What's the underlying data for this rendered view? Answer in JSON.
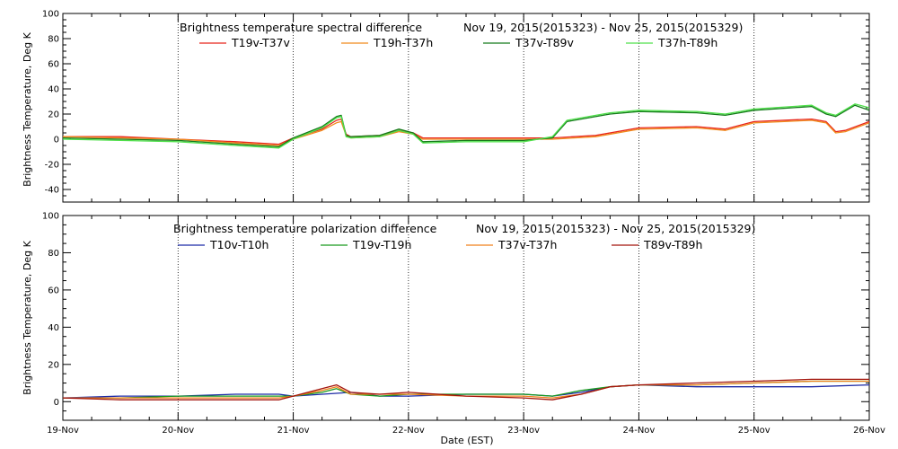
{
  "chart_data": [
    {
      "type": "line",
      "title": "Brightness temperature spectral difference",
      "date_range": "Nov 19, 2015(2015323) - Nov 25, 2015(2015329)",
      "ylabel": "Brightness Temperature, Deg K",
      "xlabel": "",
      "ylim": [
        -50,
        100
      ],
      "yticks": [
        -40,
        -20,
        0,
        20,
        40,
        60,
        80,
        100
      ],
      "xlim": [
        "2015-11-19",
        "2015-11-26"
      ],
      "grid": "vertical dotted at day boundaries",
      "legend_placement": "top",
      "series": [
        {
          "name": "T19v-T37v",
          "color": "#e8251b",
          "points": [
            [
              "2015-11-19",
              2
            ],
            [
              "2015-11-19T12:00",
              2
            ],
            [
              "2015-11-20",
              0
            ],
            [
              "2015-11-20T12:00",
              -2
            ],
            [
              "2015-11-20T21:00",
              -4
            ],
            [
              "2015-11-21",
              1
            ],
            [
              "2015-11-21T06:00",
              8
            ],
            [
              "2015-11-21T09:00",
              15
            ],
            [
              "2015-11-21T10:00",
              16
            ],
            [
              "2015-11-21T11:00",
              4
            ],
            [
              "2015-11-21T12:00",
              2
            ],
            [
              "2015-11-21T18:00",
              3
            ],
            [
              "2015-11-21T22:00",
              7
            ],
            [
              "2015-11-22T01:00",
              5
            ],
            [
              "2015-11-22T03:00",
              1
            ],
            [
              "2015-11-22T12:00",
              1
            ],
            [
              "2015-11-23",
              1
            ],
            [
              "2015-11-23T06:00",
              1
            ],
            [
              "2015-11-23T15:00",
              3
            ],
            [
              "2015-11-24",
              9
            ],
            [
              "2015-11-24T12:00",
              10
            ],
            [
              "2015-11-24T18:00",
              8
            ],
            [
              "2015-11-25",
              14
            ],
            [
              "2015-11-25T12:00",
              16
            ],
            [
              "2015-11-25T15:00",
              14
            ],
            [
              "2015-11-25T17:00",
              6
            ],
            [
              "2015-11-25T19:00",
              7
            ],
            [
              "2015-11-26",
              14
            ]
          ]
        },
        {
          "name": "T19h-T37h",
          "color": "#f08a1c",
          "points": [
            [
              "2015-11-19",
              2
            ],
            [
              "2015-11-19T12:00",
              1
            ],
            [
              "2015-11-20",
              0
            ],
            [
              "2015-11-20T12:00",
              -3
            ],
            [
              "2015-11-20T21:00",
              -5
            ],
            [
              "2015-11-21",
              0
            ],
            [
              "2015-11-21T06:00",
              7
            ],
            [
              "2015-11-21T09:00",
              13
            ],
            [
              "2015-11-21T10:00",
              14
            ],
            [
              "2015-11-21T11:00",
              3
            ],
            [
              "2015-11-21T12:00",
              1
            ],
            [
              "2015-11-21T18:00",
              2
            ],
            [
              "2015-11-21T22:00",
              6
            ],
            [
              "2015-11-22T01:00",
              4
            ],
            [
              "2015-11-22T03:00",
              0
            ],
            [
              "2015-11-22T12:00",
              0
            ],
            [
              "2015-11-23",
              0
            ],
            [
              "2015-11-23T06:00",
              0
            ],
            [
              "2015-11-23T15:00",
              2
            ],
            [
              "2015-11-24",
              8
            ],
            [
              "2015-11-24T12:00",
              9
            ],
            [
              "2015-11-24T18:00",
              7
            ],
            [
              "2015-11-25",
              13
            ],
            [
              "2015-11-25T12:00",
              15
            ],
            [
              "2015-11-25T15:00",
              13
            ],
            [
              "2015-11-25T17:00",
              5
            ],
            [
              "2015-11-25T19:00",
              6
            ],
            [
              "2015-11-26",
              13
            ]
          ]
        },
        {
          "name": "T37v-T89v",
          "color": "#147a1a",
          "points": [
            [
              "2015-11-19",
              1
            ],
            [
              "2015-11-19T12:00",
              0
            ],
            [
              "2015-11-20",
              -1
            ],
            [
              "2015-11-20T12:00",
              -4
            ],
            [
              "2015-11-20T21:00",
              -6
            ],
            [
              "2015-11-21",
              1
            ],
            [
              "2015-11-21T06:00",
              10
            ],
            [
              "2015-11-21T09:00",
              18
            ],
            [
              "2015-11-21T10:00",
              19
            ],
            [
              "2015-11-21T11:00",
              3
            ],
            [
              "2015-11-21T12:00",
              2
            ],
            [
              "2015-11-21T18:00",
              3
            ],
            [
              "2015-11-21T22:00",
              8
            ],
            [
              "2015-11-22T01:00",
              5
            ],
            [
              "2015-11-22T03:00",
              -2
            ],
            [
              "2015-11-22T12:00",
              -1
            ],
            [
              "2015-11-23",
              -1
            ],
            [
              "2015-11-23T06:00",
              1
            ],
            [
              "2015-11-23T09:00",
              14
            ],
            [
              "2015-11-23T18:00",
              20
            ],
            [
              "2015-11-24",
              22
            ],
            [
              "2015-11-24T12:00",
              21
            ],
            [
              "2015-11-24T18:00",
              19
            ],
            [
              "2015-11-25",
              23
            ],
            [
              "2015-11-25T12:00",
              26
            ],
            [
              "2015-11-25T15:00",
              20
            ],
            [
              "2015-11-25T17:00",
              18
            ],
            [
              "2015-11-25T21:00",
              27
            ],
            [
              "2015-11-26",
              23
            ]
          ]
        },
        {
          "name": "T37h-T89h",
          "color": "#4fe04a",
          "points": [
            [
              "2015-11-19",
              0
            ],
            [
              "2015-11-19T12:00",
              -1
            ],
            [
              "2015-11-20",
              -2
            ],
            [
              "2015-11-20T12:00",
              -5
            ],
            [
              "2015-11-20T21:00",
              -7
            ],
            [
              "2015-11-21",
              0
            ],
            [
              "2015-11-21T06:00",
              9
            ],
            [
              "2015-11-21T09:00",
              17
            ],
            [
              "2015-11-21T10:00",
              18
            ],
            [
              "2015-11-21T11:00",
              2
            ],
            [
              "2015-11-21T12:00",
              1
            ],
            [
              "2015-11-21T18:00",
              2
            ],
            [
              "2015-11-21T22:00",
              7
            ],
            [
              "2015-11-22T01:00",
              4
            ],
            [
              "2015-11-22T03:00",
              -3
            ],
            [
              "2015-11-22T12:00",
              -2
            ],
            [
              "2015-11-23",
              -2
            ],
            [
              "2015-11-23T06:00",
              2
            ],
            [
              "2015-11-23T09:00",
              15
            ],
            [
              "2015-11-23T18:00",
              21
            ],
            [
              "2015-11-24",
              23
            ],
            [
              "2015-11-24T12:00",
              22
            ],
            [
              "2015-11-24T18:00",
              20
            ],
            [
              "2015-11-25",
              24
            ],
            [
              "2015-11-25T12:00",
              27
            ],
            [
              "2015-11-25T15:00",
              21
            ],
            [
              "2015-11-25T17:00",
              19
            ],
            [
              "2015-11-25T21:00",
              28
            ],
            [
              "2015-11-26",
              25
            ]
          ]
        }
      ]
    },
    {
      "type": "line",
      "title": "Brightness temperature polarization difference",
      "date_range": "Nov 19, 2015(2015323) - Nov 25, 2015(2015329)",
      "ylabel": "Brightness Temperature, Deg K",
      "xlabel": "Date (EST)",
      "ylim": [
        -10,
        100
      ],
      "yticks": [
        0,
        20,
        40,
        60,
        80,
        100
      ],
      "xlim": [
        "2015-11-19",
        "2015-11-26"
      ],
      "grid": "vertical dotted at day boundaries",
      "legend_placement": "top",
      "series": [
        {
          "name": "T10v-T10h",
          "color": "#1c2aa6",
          "points": [
            [
              "2015-11-19",
              2
            ],
            [
              "2015-11-19T12:00",
              3
            ],
            [
              "2015-11-20",
              3
            ],
            [
              "2015-11-20T12:00",
              4
            ],
            [
              "2015-11-20T21:00",
              4
            ],
            [
              "2015-11-21",
              3
            ],
            [
              "2015-11-21T12:00",
              5
            ],
            [
              "2015-11-21T18:00",
              3
            ],
            [
              "2015-11-22",
              3
            ],
            [
              "2015-11-22T12:00",
              4
            ],
            [
              "2015-11-23",
              4
            ],
            [
              "2015-11-23T06:00",
              3
            ],
            [
              "2015-11-23T12:00",
              5
            ],
            [
              "2015-11-23T18:00",
              8
            ],
            [
              "2015-11-24",
              9
            ],
            [
              "2015-11-24T12:00",
              8
            ],
            [
              "2015-11-25",
              8
            ],
            [
              "2015-11-25T12:00",
              8
            ],
            [
              "2015-11-26",
              9
            ]
          ]
        },
        {
          "name": "T19v-T19h",
          "color": "#199a1e",
          "points": [
            [
              "2015-11-19",
              2
            ],
            [
              "2015-11-19T12:00",
              2
            ],
            [
              "2015-11-20",
              3
            ],
            [
              "2015-11-20T12:00",
              3
            ],
            [
              "2015-11-20T21:00",
              3
            ],
            [
              "2015-11-21",
              3
            ],
            [
              "2015-11-21T06:00",
              5
            ],
            [
              "2015-11-21T09:00",
              7
            ],
            [
              "2015-11-21T12:00",
              4
            ],
            [
              "2015-11-21T18:00",
              3
            ],
            [
              "2015-11-22",
              4
            ],
            [
              "2015-11-22T12:00",
              4
            ],
            [
              "2015-11-23",
              4
            ],
            [
              "2015-11-23T06:00",
              3
            ],
            [
              "2015-11-23T12:00",
              6
            ],
            [
              "2015-11-23T18:00",
              8
            ],
            [
              "2015-11-24",
              9
            ],
            [
              "2015-11-24T12:00",
              9
            ],
            [
              "2015-11-25",
              10
            ],
            [
              "2015-11-25T12:00",
              11
            ],
            [
              "2015-11-26",
              11
            ]
          ]
        },
        {
          "name": "T37v-T37h",
          "color": "#f0811c",
          "points": [
            [
              "2015-11-19",
              2
            ],
            [
              "2015-11-19T12:00",
              2
            ],
            [
              "2015-11-20",
              2
            ],
            [
              "2015-11-20T12:00",
              2
            ],
            [
              "2015-11-20T21:00",
              2
            ],
            [
              "2015-11-21",
              3
            ],
            [
              "2015-11-21T06:00",
              6
            ],
            [
              "2015-11-21T09:00",
              8
            ],
            [
              "2015-11-21T12:00",
              4
            ],
            [
              "2015-11-21T18:00",
              4
            ],
            [
              "2015-11-22",
              4
            ],
            [
              "2015-11-22T12:00",
              3
            ],
            [
              "2015-11-23",
              3
            ],
            [
              "2015-11-23T06:00",
              2
            ],
            [
              "2015-11-23T12:00",
              4
            ],
            [
              "2015-11-23T18:00",
              8
            ],
            [
              "2015-11-24",
              9
            ],
            [
              "2015-11-24T12:00",
              9
            ],
            [
              "2015-11-25",
              10
            ],
            [
              "2015-11-25T12:00",
              11
            ],
            [
              "2015-11-26",
              11
            ]
          ]
        },
        {
          "name": "T89v-T89h",
          "color": "#a3140c",
          "points": [
            [
              "2015-11-19",
              2
            ],
            [
              "2015-11-19T12:00",
              1
            ],
            [
              "2015-11-20",
              1
            ],
            [
              "2015-11-20T12:00",
              1
            ],
            [
              "2015-11-20T21:00",
              1
            ],
            [
              "2015-11-21",
              3
            ],
            [
              "2015-11-21T06:00",
              7
            ],
            [
              "2015-11-21T09:00",
              9
            ],
            [
              "2015-11-21T12:00",
              5
            ],
            [
              "2015-11-21T18:00",
              4
            ],
            [
              "2015-11-22",
              5
            ],
            [
              "2015-11-22T12:00",
              3
            ],
            [
              "2015-11-23",
              2
            ],
            [
              "2015-11-23T06:00",
              1
            ],
            [
              "2015-11-23T12:00",
              4
            ],
            [
              "2015-11-23T18:00",
              8
            ],
            [
              "2015-11-24",
              9
            ],
            [
              "2015-11-24T12:00",
              10
            ],
            [
              "2015-11-25",
              11
            ],
            [
              "2015-11-25T12:00",
              12
            ],
            [
              "2015-11-26",
              12
            ]
          ]
        }
      ]
    }
  ],
  "x_tick_labels": [
    "19-Nov",
    "20-Nov",
    "21-Nov",
    "22-Nov",
    "23-Nov",
    "24-Nov",
    "25-Nov",
    "26-Nov"
  ],
  "x_tick_dates": [
    "2015-11-19",
    "2015-11-20",
    "2015-11-21",
    "2015-11-22",
    "2015-11-23",
    "2015-11-24",
    "2015-11-25",
    "2015-11-26"
  ]
}
